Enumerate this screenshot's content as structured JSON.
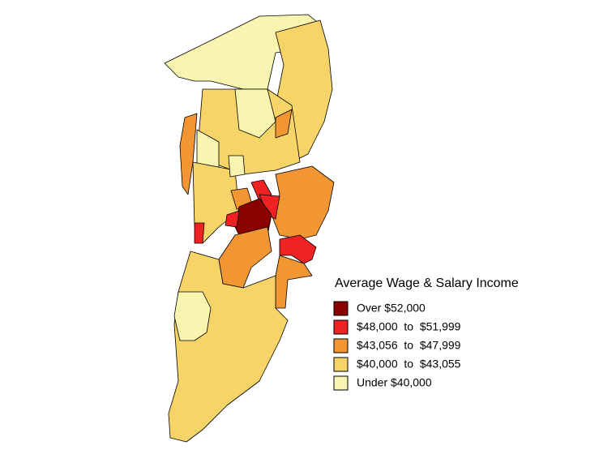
{
  "legend": {
    "title": "Average Wage & Salary Income",
    "items": [
      {
        "label": "Over $52,000",
        "color": "#8b0000"
      },
      {
        "label": "$48,000  to  $51,999",
        "color": "#ee2222"
      },
      {
        "label": "$43,056  to  $47,999",
        "color": "#f29533"
      },
      {
        "label": "$40,000  to  $43,055",
        "color": "#f7d468"
      },
      {
        "label": "Under $40,000",
        "color": "#f8f5b0"
      }
    ]
  }
}
